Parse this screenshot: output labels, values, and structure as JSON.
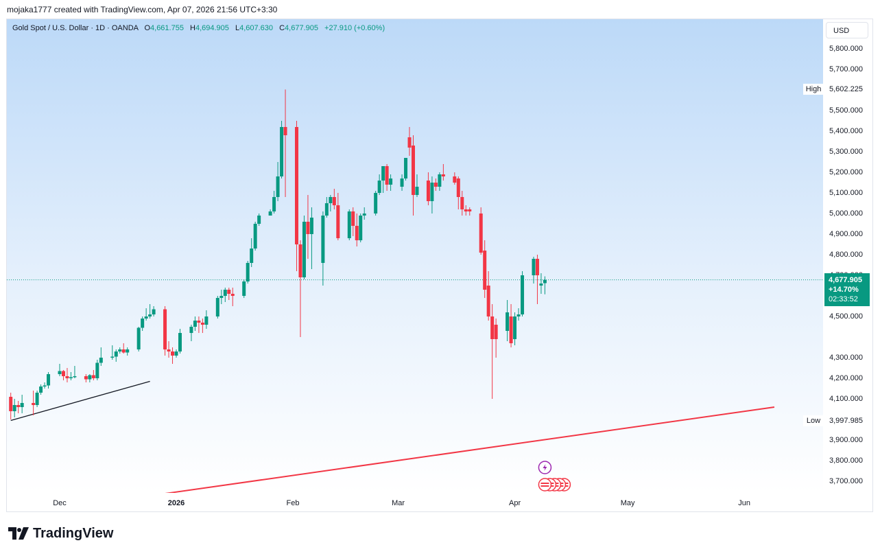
{
  "credit": "mojaka1777 created with TradingView.com, Apr 07, 2026 21:56 UTC+3:30",
  "legend": {
    "symbol": "Gold Spot / U.S. Dollar · 1D · OANDA",
    "open_key": "O",
    "open": "4,661.755",
    "high_key": "H",
    "high": "4,694.905",
    "low_key": "L",
    "low": "4,607.630",
    "close_key": "C",
    "close": "4,677.905",
    "change": "+27.910 (+0.60%)"
  },
  "currency": "USD",
  "high_label": "High",
  "high_value": "5,602.225",
  "low_label": "Low",
  "low_value": "3,997.985",
  "price_tag": {
    "price": "4,677.905",
    "change_pct": "+14.70%",
    "countdown": "02:33:52"
  },
  "brand": "TradingView",
  "colors": {
    "up": "#089981",
    "down": "#f23645",
    "trendline_black": "#131722",
    "trendline_red": "#f23645"
  },
  "icons": [
    "lightning-event-icon",
    "us-flag-event-icon"
  ],
  "chart_data": {
    "type": "candlestick",
    "title": "Gold Spot / U.S. Dollar · 1D · OANDA",
    "currency": "USD",
    "y_ticks": [
      3700,
      3800,
      3900,
      4000,
      4100,
      4200,
      4300,
      4500,
      4600,
      4700,
      4800,
      4900,
      5000,
      5100,
      5200,
      5300,
      5400,
      5500,
      5700,
      5800
    ],
    "y_tick_labels": [
      "3,700.000",
      "3,800.000",
      "3,900.000",
      "",
      "4,100.000",
      "4,200.000",
      "4,300.000",
      "4,500.000",
      "",
      "4,700.000",
      "4,800.000",
      "4,900.000",
      "5,000.000",
      "5,100.000",
      "5,200.000",
      "5,300.000",
      "5,400.000",
      "5,500.000",
      "5,700.000",
      "5,800.000"
    ],
    "x_labels": [
      {
        "label": "Dec",
        "date": "2025-12-01",
        "bold": false
      },
      {
        "label": "2026",
        "date": "2026-01-01",
        "bold": true
      },
      {
        "label": "Feb",
        "date": "2026-02-01",
        "bold": false
      },
      {
        "label": "Mar",
        "date": "2026-03-01",
        "bold": false
      },
      {
        "label": "Apr",
        "date": "2026-04-01",
        "bold": false
      },
      {
        "label": "May",
        "date": "2026-05-01",
        "bold": false
      },
      {
        "label": "Jun",
        "date": "2026-06-01",
        "bold": false
      }
    ],
    "last_price": 4677.905,
    "high": 5602.225,
    "low": 3997.985,
    "candles": [
      {
        "d": "2025-11-18",
        "o": 4110,
        "h": 4130,
        "l": 4000,
        "c": 4040
      },
      {
        "d": "2025-11-19",
        "o": 4040,
        "h": 4100,
        "l": 4010,
        "c": 4070
      },
      {
        "d": "2025-11-20",
        "o": 4070,
        "h": 4090,
        "l": 4030,
        "c": 4060
      },
      {
        "d": "2025-11-21",
        "o": 4060,
        "h": 4120,
        "l": 4030,
        "c": 4080
      },
      {
        "d": "2025-11-24",
        "o": 4080,
        "h": 4140,
        "l": 4020,
        "c": 4070
      },
      {
        "d": "2025-11-25",
        "o": 4070,
        "h": 4140,
        "l": 4060,
        "c": 4130
      },
      {
        "d": "2025-11-26",
        "o": 4130,
        "h": 4170,
        "l": 4120,
        "c": 4160
      },
      {
        "d": "2025-11-27",
        "o": 4160,
        "h": 4180,
        "l": 4150,
        "c": 4165
      },
      {
        "d": "2025-11-28",
        "o": 4165,
        "h": 4230,
        "l": 4150,
        "c": 4220
      },
      {
        "d": "2025-12-01",
        "o": 4220,
        "h": 4270,
        "l": 4210,
        "c": 4235
      },
      {
        "d": "2025-12-02",
        "o": 4235,
        "h": 4240,
        "l": 4190,
        "c": 4210
      },
      {
        "d": "2025-12-03",
        "o": 4210,
        "h": 4250,
        "l": 4180,
        "c": 4200
      },
      {
        "d": "2025-12-04",
        "o": 4200,
        "h": 4230,
        "l": 4190,
        "c": 4205
      },
      {
        "d": "2025-12-05",
        "o": 4205,
        "h": 4260,
        "l": 4200,
        "c": 4210
      },
      {
        "d": "2025-12-08",
        "o": 4210,
        "h": 4220,
        "l": 4180,
        "c": 4195
      },
      {
        "d": "2025-12-09",
        "o": 4195,
        "h": 4220,
        "l": 4180,
        "c": 4215
      },
      {
        "d": "2025-12-10",
        "o": 4215,
        "h": 4240,
        "l": 4190,
        "c": 4200
      },
      {
        "d": "2025-12-11",
        "o": 4200,
        "h": 4290,
        "l": 4190,
        "c": 4275
      },
      {
        "d": "2025-12-12",
        "o": 4275,
        "h": 4350,
        "l": 4260,
        "c": 4300
      },
      {
        "d": "2025-12-15",
        "o": 4300,
        "h": 4360,
        "l": 4290,
        "c": 4305
      },
      {
        "d": "2025-12-16",
        "o": 4305,
        "h": 4340,
        "l": 4280,
        "c": 4330
      },
      {
        "d": "2025-12-17",
        "o": 4330,
        "h": 4350,
        "l": 4320,
        "c": 4340
      },
      {
        "d": "2025-12-18",
        "o": 4340,
        "h": 4370,
        "l": 4320,
        "c": 4325
      },
      {
        "d": "2025-12-19",
        "o": 4325,
        "h": 4350,
        "l": 4310,
        "c": 4340
      },
      {
        "d": "2025-12-22",
        "o": 4340,
        "h": 4450,
        "l": 4330,
        "c": 4445
      },
      {
        "d": "2025-12-23",
        "o": 4445,
        "h": 4500,
        "l": 4430,
        "c": 4490
      },
      {
        "d": "2025-12-24",
        "o": 4490,
        "h": 4540,
        "l": 4480,
        "c": 4500
      },
      {
        "d": "2025-12-25",
        "o": 4500,
        "h": 4560,
        "l": 4490,
        "c": 4510
      },
      {
        "d": "2025-12-26",
        "o": 4510,
        "h": 4550,
        "l": 4500,
        "c": 4535
      },
      {
        "d": "2025-12-29",
        "o": 4535,
        "h": 4550,
        "l": 4310,
        "c": 4340
      },
      {
        "d": "2025-12-30",
        "o": 4340,
        "h": 4380,
        "l": 4300,
        "c": 4330
      },
      {
        "d": "2025-12-31",
        "o": 4330,
        "h": 4350,
        "l": 4270,
        "c": 4310
      },
      {
        "d": "2026-01-01",
        "o": 4310,
        "h": 4340,
        "l": 4300,
        "c": 4330
      },
      {
        "d": "2026-01-02",
        "o": 4330,
        "h": 4440,
        "l": 4320,
        "c": 4420
      },
      {
        "d": "2026-01-05",
        "o": 4420,
        "h": 4460,
        "l": 4380,
        "c": 4450
      },
      {
        "d": "2026-01-06",
        "o": 4450,
        "h": 4500,
        "l": 4430,
        "c": 4480
      },
      {
        "d": "2026-01-07",
        "o": 4480,
        "h": 4500,
        "l": 4420,
        "c": 4470
      },
      {
        "d": "2026-01-08",
        "o": 4470,
        "h": 4490,
        "l": 4420,
        "c": 4460
      },
      {
        "d": "2026-01-09",
        "o": 4460,
        "h": 4530,
        "l": 4440,
        "c": 4500
      },
      {
        "d": "2026-01-12",
        "o": 4500,
        "h": 4600,
        "l": 4490,
        "c": 4590
      },
      {
        "d": "2026-01-13",
        "o": 4590,
        "h": 4630,
        "l": 4560,
        "c": 4600
      },
      {
        "d": "2026-01-14",
        "o": 4600,
        "h": 4640,
        "l": 4570,
        "c": 4630
      },
      {
        "d": "2026-01-15",
        "o": 4630,
        "h": 4640,
        "l": 4580,
        "c": 4610
      },
      {
        "d": "2026-01-16",
        "o": 4610,
        "h": 4640,
        "l": 4550,
        "c": 4600
      },
      {
        "d": "2026-01-19",
        "o": 4600,
        "h": 4680,
        "l": 4590,
        "c": 4670
      },
      {
        "d": "2026-01-20",
        "o": 4670,
        "h": 4770,
        "l": 4660,
        "c": 4760
      },
      {
        "d": "2026-01-21",
        "o": 4760,
        "h": 4880,
        "l": 4740,
        "c": 4830
      },
      {
        "d": "2026-01-22",
        "o": 4830,
        "h": 4960,
        "l": 4820,
        "c": 4950
      },
      {
        "d": "2026-01-23",
        "o": 4950,
        "h": 5000,
        "l": 4940,
        "c": 4990
      },
      {
        "d": "2026-01-26",
        "o": 4990,
        "h": 5020,
        "l": 4990,
        "c": 5010
      },
      {
        "d": "2026-01-27",
        "o": 5010,
        "h": 5110,
        "l": 5000,
        "c": 5080
      },
      {
        "d": "2026-01-28",
        "o": 5080,
        "h": 5250,
        "l": 5060,
        "c": 5180
      },
      {
        "d": "2026-01-29",
        "o": 5180,
        "h": 5450,
        "l": 5170,
        "c": 5420
      },
      {
        "d": "2026-01-30",
        "o": 5420,
        "h": 5602,
        "l": 5080,
        "c": 5380
      },
      {
        "d": "2026-02-02",
        "o": 5420,
        "h": 5450,
        "l": 4720,
        "c": 4850
      },
      {
        "d": "2026-02-03",
        "o": 4850,
        "h": 4870,
        "l": 4400,
        "c": 4690
      },
      {
        "d": "2026-02-04",
        "o": 4690,
        "h": 4990,
        "l": 4680,
        "c": 4960
      },
      {
        "d": "2026-02-05",
        "o": 4960,
        "h": 5090,
        "l": 4780,
        "c": 4900
      },
      {
        "d": "2026-02-06",
        "o": 4900,
        "h": 5030,
        "l": 4730,
        "c": 4980
      },
      {
        "d": "2026-02-09",
        "o": 4760,
        "h": 5010,
        "l": 4650,
        "c": 4990
      },
      {
        "d": "2026-02-10",
        "o": 4990,
        "h": 5080,
        "l": 4980,
        "c": 5050
      },
      {
        "d": "2026-02-11",
        "o": 5050,
        "h": 5090,
        "l": 5010,
        "c": 5080
      },
      {
        "d": "2026-02-12",
        "o": 5080,
        "h": 5120,
        "l": 5020,
        "c": 5040
      },
      {
        "d": "2026-02-13",
        "o": 5040,
        "h": 5100,
        "l": 4870,
        "c": 4880
      },
      {
        "d": "2026-02-16",
        "o": 4880,
        "h": 5020,
        "l": 4870,
        "c": 5010
      },
      {
        "d": "2026-02-17",
        "o": 5010,
        "h": 5030,
        "l": 4890,
        "c": 4940
      },
      {
        "d": "2026-02-18",
        "o": 4940,
        "h": 5000,
        "l": 4840,
        "c": 4870
      },
      {
        "d": "2026-02-19",
        "o": 4870,
        "h": 5000,
        "l": 4860,
        "c": 4990
      },
      {
        "d": "2026-02-20",
        "o": 4990,
        "h": 5030,
        "l": 4970,
        "c": 5000
      },
      {
        "d": "2026-02-23",
        "o": 5000,
        "h": 5110,
        "l": 4990,
        "c": 5100
      },
      {
        "d": "2026-02-24",
        "o": 5100,
        "h": 5190,
        "l": 5090,
        "c": 5160
      },
      {
        "d": "2026-02-25",
        "o": 5160,
        "h": 5220,
        "l": 5100,
        "c": 5230
      },
      {
        "d": "2026-02-26",
        "o": 5230,
        "h": 5240,
        "l": 5110,
        "c": 5140
      },
      {
        "d": "2026-02-27",
        "o": 5140,
        "h": 5190,
        "l": 5110,
        "c": 5170
      },
      {
        "d": "2026-03-02",
        "o": 5130,
        "h": 5190,
        "l": 5110,
        "c": 5170
      },
      {
        "d": "2026-03-03",
        "o": 5170,
        "h": 5270,
        "l": 5160,
        "c": 5270
      },
      {
        "d": "2026-03-04",
        "o": 5370,
        "h": 5420,
        "l": 5280,
        "c": 5320
      },
      {
        "d": "2026-03-05",
        "o": 5330,
        "h": 5380,
        "l": 4990,
        "c": 5090
      },
      {
        "d": "2026-03-06",
        "o": 5090,
        "h": 5190,
        "l": 5080,
        "c": 5130
      },
      {
        "d": "2026-03-09",
        "o": 5160,
        "h": 5200,
        "l": 5040,
        "c": 5060
      },
      {
        "d": "2026-03-10",
        "o": 5060,
        "h": 5180,
        "l": 5000,
        "c": 5150
      },
      {
        "d": "2026-03-11",
        "o": 5150,
        "h": 5170,
        "l": 5110,
        "c": 5130
      },
      {
        "d": "2026-03-12",
        "o": 5130,
        "h": 5200,
        "l": 5110,
        "c": 5190
      },
      {
        "d": "2026-03-13",
        "o": 5190,
        "h": 5240,
        "l": 5160,
        "c": 5180
      },
      {
        "d": "2026-03-16",
        "o": 5180,
        "h": 5200,
        "l": 5140,
        "c": 5150
      },
      {
        "d": "2026-03-17",
        "o": 5170,
        "h": 5180,
        "l": 5020,
        "c": 5080
      },
      {
        "d": "2026-03-18",
        "o": 5080,
        "h": 5110,
        "l": 4990,
        "c": 5020
      },
      {
        "d": "2026-03-19",
        "o": 5020,
        "h": 5040,
        "l": 4990,
        "c": 5010
      },
      {
        "d": "2026-03-20",
        "o": 5020,
        "h": 5030,
        "l": 4990,
        "c": 5010
      },
      {
        "d": "2026-03-23",
        "o": 5000,
        "h": 5030,
        "l": 4800,
        "c": 4810
      },
      {
        "d": "2026-03-24",
        "o": 4820,
        "h": 4870,
        "l": 4590,
        "c": 4630
      },
      {
        "d": "2026-03-25",
        "o": 4650,
        "h": 4720,
        "l": 4480,
        "c": 4500
      },
      {
        "d": "2026-03-26",
        "o": 4500,
        "h": 4560,
        "l": 4100,
        "c": 4390
      },
      {
        "d": "2026-03-27",
        "o": 4460,
        "h": 4490,
        "l": 4300,
        "c": 4390
      },
      {
        "d": "2026-03-30",
        "o": 4430,
        "h": 4580,
        "l": 4380,
        "c": 4520
      },
      {
        "d": "2026-03-31",
        "o": 4500,
        "h": 4560,
        "l": 4350,
        "c": 4370
      },
      {
        "d": "2026-04-01",
        "o": 4390,
        "h": 4520,
        "l": 4360,
        "c": 4500
      },
      {
        "d": "2026-04-02",
        "o": 4500,
        "h": 4540,
        "l": 4480,
        "c": 4510
      },
      {
        "d": "2026-04-03",
        "o": 4510,
        "h": 4720,
        "l": 4500,
        "c": 4700
      },
      {
        "d": "2026-04-06",
        "o": 4700,
        "h": 4790,
        "l": 4660,
        "c": 4780
      },
      {
        "d": "2026-04-07",
        "o": 4780,
        "h": 4800,
        "l": 4560,
        "c": 4700
      },
      {
        "d": "2026-04-08",
        "o": 4650,
        "h": 4710,
        "l": 4610,
        "c": 4660
      },
      {
        "d": "2026-04-09",
        "o": 4661.755,
        "h": 4694.905,
        "l": 4607.63,
        "c": 4677.905
      }
    ],
    "trendlines": [
      {
        "color": "#131722",
        "from": {
          "d": "2025-11-18",
          "p": 3995
        },
        "to": {
          "d": "2025-12-25",
          "p": 4185
        }
      },
      {
        "color": "#f23645",
        "from": {
          "d": "2025-12-29",
          "p": 3640
        },
        "to": {
          "d": "2026-06-09",
          "p": 4060
        }
      }
    ],
    "events": [
      {
        "d": "2026-04-09",
        "type": "lightning-event-icon"
      },
      {
        "d": "2026-04-09",
        "type": "us-flag-event-icon",
        "count": 5
      }
    ]
  }
}
